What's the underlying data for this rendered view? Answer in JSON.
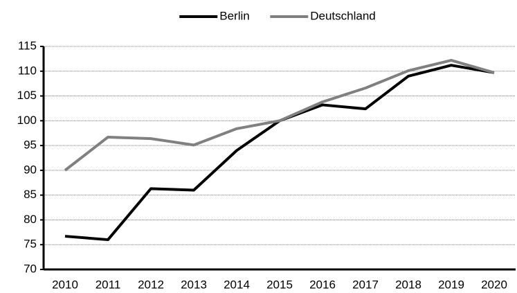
{
  "chart_data": {
    "type": "line",
    "categories": [
      "2010",
      "2011",
      "2012",
      "2013",
      "2014",
      "2015",
      "2016",
      "2017",
      "2018",
      "2019",
      "2020"
    ],
    "series": [
      {
        "name": "Berlin",
        "color": "#000000",
        "values": [
          76.7,
          76.0,
          86.3,
          86.0,
          94.0,
          100.0,
          103.2,
          102.4,
          109.0,
          111.2,
          109.7
        ]
      },
      {
        "name": "Deutschland",
        "color": "#808080",
        "values": [
          90.0,
          96.7,
          96.4,
          95.1,
          98.4,
          100.0,
          103.8,
          106.6,
          110.1,
          112.2,
          109.7
        ]
      }
    ],
    "ylim": [
      70,
      115
    ],
    "yticks": [
      70,
      75,
      80,
      85,
      90,
      95,
      100,
      105,
      110,
      115
    ],
    "grid": true,
    "legend": "top"
  }
}
